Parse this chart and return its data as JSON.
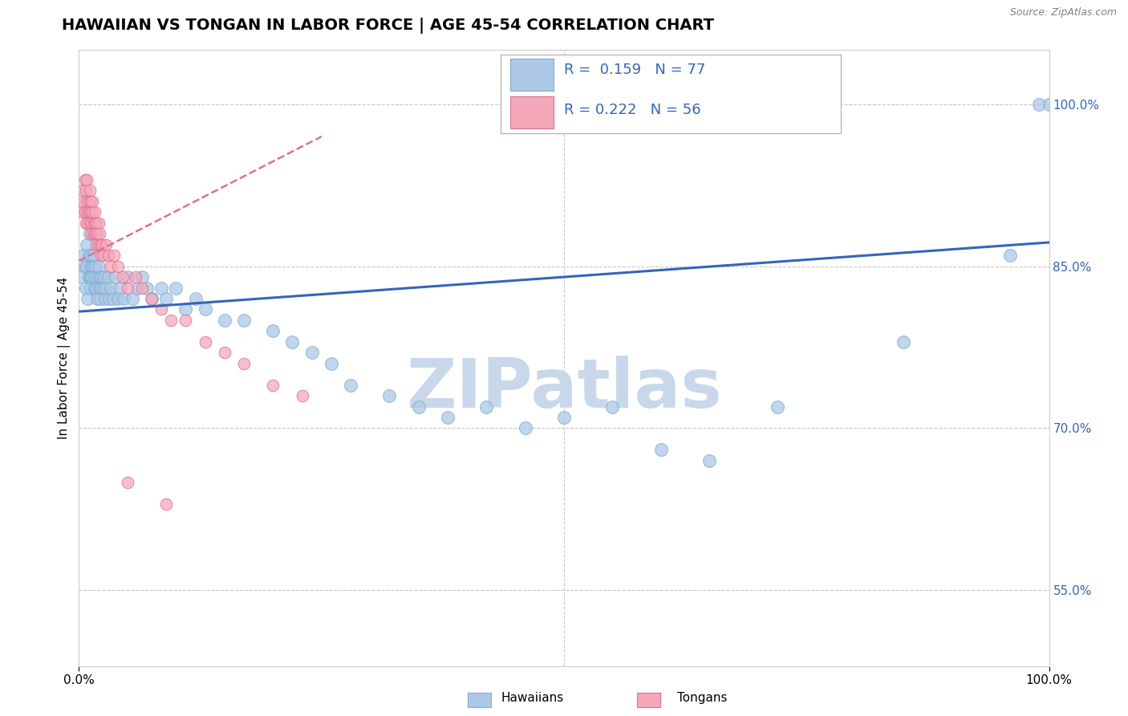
{
  "title": "HAWAIIAN VS TONGAN IN LABOR FORCE | AGE 45-54 CORRELATION CHART",
  "source": "Source: ZipAtlas.com",
  "ylabel": "In Labor Force | Age 45-54",
  "xlim": [
    0.0,
    1.0
  ],
  "ylim": [
    0.48,
    1.05
  ],
  "yticks": [
    0.55,
    0.7,
    0.85,
    1.0
  ],
  "ytick_labels": [
    "55.0%",
    "70.0%",
    "85.0%",
    "100.0%"
  ],
  "xtick_labels": [
    "0.0%",
    "100.0%"
  ],
  "hawaiian_R": 0.159,
  "hawaiian_N": 77,
  "tongan_R": 0.222,
  "tongan_N": 56,
  "hawaiian_color": "#adc8e6",
  "tongan_color": "#f5a8ba",
  "hawaiian_edge": "#7aafd4",
  "tongan_edge": "#e07090",
  "trend_hawaiian_color": "#3366bb",
  "trend_tongan_color": "#e07090",
  "background_color": "#ffffff",
  "grid_color": "#c8c8c8",
  "watermark": "ZIPatlas",
  "watermark_color": "#c8d8ea",
  "title_fontsize": 14,
  "label_fontsize": 11,
  "tick_fontsize": 11,
  "legend_fontsize": 13,
  "hawaiian_x": [
    0.003,
    0.005,
    0.006,
    0.007,
    0.008,
    0.008,
    0.009,
    0.01,
    0.01,
    0.011,
    0.011,
    0.012,
    0.012,
    0.013,
    0.013,
    0.014,
    0.014,
    0.015,
    0.015,
    0.016,
    0.016,
    0.017,
    0.018,
    0.018,
    0.019,
    0.02,
    0.02,
    0.021,
    0.022,
    0.022,
    0.023,
    0.024,
    0.025,
    0.026,
    0.027,
    0.028,
    0.03,
    0.031,
    0.033,
    0.035,
    0.038,
    0.04,
    0.043,
    0.046,
    0.05,
    0.055,
    0.06,
    0.065,
    0.07,
    0.075,
    0.085,
    0.09,
    0.1,
    0.11,
    0.12,
    0.13,
    0.15,
    0.17,
    0.2,
    0.22,
    0.24,
    0.26,
    0.28,
    0.32,
    0.35,
    0.38,
    0.42,
    0.46,
    0.5,
    0.55,
    0.6,
    0.65,
    0.72,
    0.85,
    0.96,
    0.99,
    1.0
  ],
  "hawaiian_y": [
    0.84,
    0.86,
    0.85,
    0.83,
    0.87,
    0.85,
    0.82,
    0.84,
    0.86,
    0.88,
    0.84,
    0.85,
    0.83,
    0.86,
    0.84,
    0.85,
    0.84,
    0.86,
    0.85,
    0.84,
    0.83,
    0.85,
    0.84,
    0.83,
    0.82,
    0.84,
    0.85,
    0.83,
    0.84,
    0.82,
    0.83,
    0.84,
    0.83,
    0.84,
    0.82,
    0.83,
    0.84,
    0.82,
    0.83,
    0.82,
    0.84,
    0.82,
    0.83,
    0.82,
    0.84,
    0.82,
    0.83,
    0.84,
    0.83,
    0.82,
    0.83,
    0.82,
    0.83,
    0.81,
    0.82,
    0.81,
    0.8,
    0.8,
    0.79,
    0.78,
    0.77,
    0.76,
    0.74,
    0.73,
    0.72,
    0.71,
    0.72,
    0.7,
    0.71,
    0.72,
    0.68,
    0.67,
    0.72,
    0.78,
    0.86,
    1.0,
    1.0
  ],
  "tongan_x": [
    0.003,
    0.004,
    0.005,
    0.006,
    0.006,
    0.007,
    0.007,
    0.008,
    0.008,
    0.009,
    0.009,
    0.01,
    0.01,
    0.011,
    0.011,
    0.012,
    0.012,
    0.013,
    0.013,
    0.014,
    0.014,
    0.015,
    0.015,
    0.016,
    0.017,
    0.017,
    0.018,
    0.018,
    0.019,
    0.02,
    0.02,
    0.021,
    0.022,
    0.023,
    0.024,
    0.025,
    0.028,
    0.03,
    0.033,
    0.036,
    0.04,
    0.045,
    0.05,
    0.058,
    0.065,
    0.075,
    0.085,
    0.095,
    0.11,
    0.13,
    0.15,
    0.17,
    0.2,
    0.23,
    0.05,
    0.09
  ],
  "tongan_y": [
    0.9,
    0.92,
    0.91,
    0.93,
    0.9,
    0.92,
    0.89,
    0.91,
    0.93,
    0.9,
    0.89,
    0.91,
    0.9,
    0.92,
    0.89,
    0.91,
    0.9,
    0.89,
    0.88,
    0.9,
    0.91,
    0.89,
    0.88,
    0.9,
    0.89,
    0.88,
    0.89,
    0.87,
    0.88,
    0.89,
    0.87,
    0.88,
    0.87,
    0.86,
    0.87,
    0.86,
    0.87,
    0.86,
    0.85,
    0.86,
    0.85,
    0.84,
    0.83,
    0.84,
    0.83,
    0.82,
    0.81,
    0.8,
    0.8,
    0.78,
    0.77,
    0.76,
    0.74,
    0.73,
    0.65,
    0.63
  ],
  "trend_h_x0": 0.0,
  "trend_h_x1": 1.0,
  "trend_h_y0": 0.808,
  "trend_h_y1": 0.872,
  "trend_t_x0": 0.0,
  "trend_t_x1": 0.25,
  "trend_t_y0": 0.855,
  "trend_t_y1": 0.97
}
